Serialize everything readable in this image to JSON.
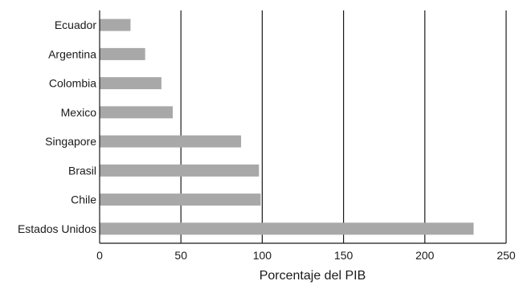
{
  "chart_data": {
    "type": "bar",
    "orientation": "horizontal",
    "categories": [
      "Ecuador",
      "Argentina",
      "Colombia",
      "Mexico",
      "Singapore",
      "Brasil",
      "Chile",
      "Estados Unidos"
    ],
    "values": [
      19,
      28,
      38,
      45,
      87,
      98,
      99,
      230
    ],
    "title": "",
    "xlabel": "Porcentaje del PIB",
    "ylabel": "",
    "xlim": [
      0,
      250
    ],
    "xticks": [
      0,
      50,
      100,
      150,
      200,
      250
    ],
    "grid": "vertical",
    "bar_color": "#a8a8a8",
    "grid_color": "#1a1a1a"
  }
}
